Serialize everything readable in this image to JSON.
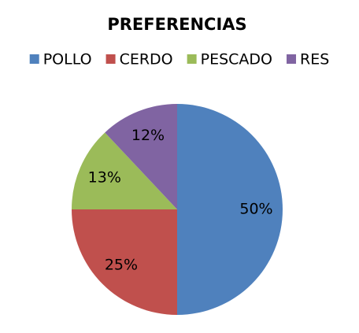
{
  "chart_data": {
    "type": "pie",
    "title": "PREFERENCIAS",
    "categories": [
      "POLLO",
      "CERDO",
      "PESCADO",
      "RES"
    ],
    "values": [
      50,
      25,
      13,
      12
    ],
    "value_labels": [
      "50%",
      "25%",
      "13%",
      "12%"
    ],
    "colors": [
      "#4F81BD",
      "#C0504D",
      "#9BBB59",
      "#8064A2"
    ],
    "legend": "top"
  }
}
